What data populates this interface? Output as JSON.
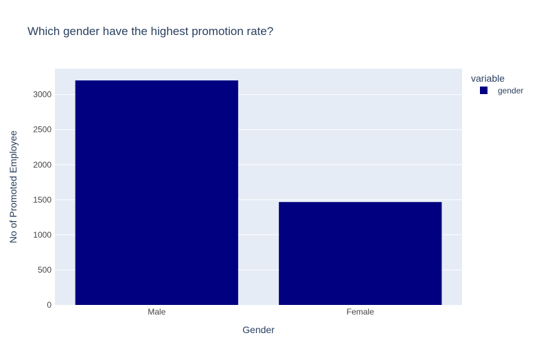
{
  "chart_data": {
    "type": "bar",
    "title": "Which gender have the highest promotion rate?",
    "xlabel": "Gender",
    "ylabel": "No of Promoted Employee",
    "categories": [
      "Male",
      "Female"
    ],
    "series": [
      {
        "name": "gender",
        "values": [
          3201,
          1467
        ],
        "color": "#000080"
      }
    ],
    "ylim": [
      0,
      3368.5
    ],
    "yticks": [
      0,
      500,
      1000,
      1500,
      2000,
      2500,
      3000
    ],
    "grid": true,
    "legend": {
      "title": "variable",
      "position": "top-right"
    },
    "colors": {
      "plot_background": "#e5ecf6",
      "gridline": "#ffffff",
      "text": "#2a3f5f",
      "tick_text": "#444444"
    }
  }
}
